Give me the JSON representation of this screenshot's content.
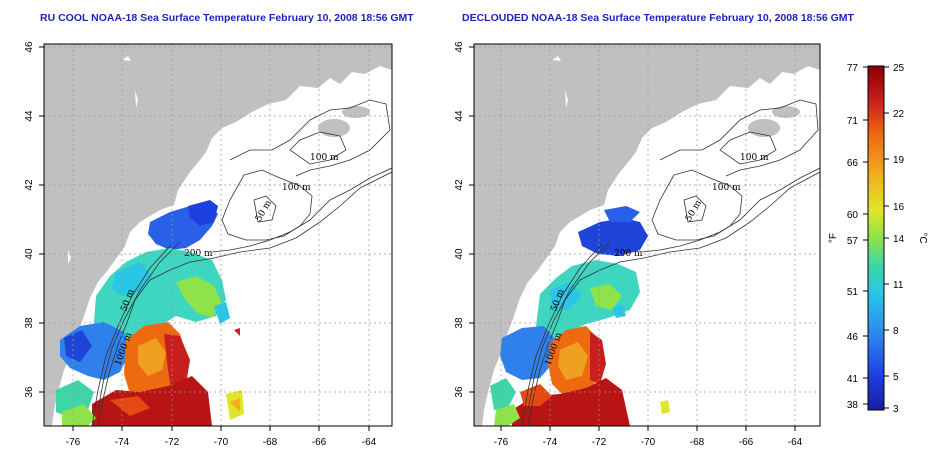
{
  "panels": [
    {
      "title": "RU COOL NOAA-18 Sea Surface Temperature February 10, 2008 18:56 GMT"
    },
    {
      "title": "DECLOUDED NOAA-18 Sea Surface Temperature February 10, 2008 18:56 GMT"
    }
  ],
  "axes": {
    "lon_ticks": [
      "-76",
      "-74",
      "-72",
      "-70",
      "-68",
      "-66",
      "-64"
    ],
    "lat_ticks": [
      "36",
      "38",
      "40",
      "42",
      "44",
      "46"
    ]
  },
  "contour_labels": [
    "100 m",
    "100 m",
    "50 m",
    "200 m",
    "50 m",
    "1000 m"
  ],
  "colorbar": {
    "fahrenheit_unit": "°F",
    "celsius_unit": "°C",
    "fahrenheit_ticks": [
      "77",
      "71",
      "66",
      "60",
      "57",
      "51",
      "46",
      "41",
      "38"
    ],
    "celsius_ticks": [
      "25",
      "22",
      "19",
      "16",
      "14",
      "11",
      "8",
      "5",
      "3"
    ],
    "colors": [
      "#8b0000",
      "#c81e1e",
      "#ee6a10",
      "#f0b020",
      "#dfe62a",
      "#8ee24a",
      "#3ed6a6",
      "#2ac6e6",
      "#2f86ee",
      "#1f3fe0",
      "#151fa0"
    ]
  },
  "colors": {
    "land": "#c0c0c0",
    "ocean": "#ffffff",
    "title": "#1f1fbf"
  }
}
